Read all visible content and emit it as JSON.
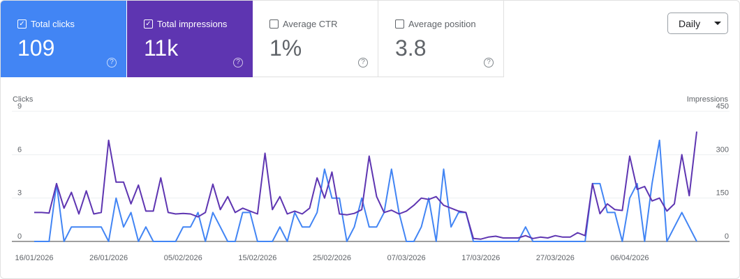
{
  "metrics": [
    {
      "label": "Total clicks",
      "value": "109",
      "checked": true,
      "color": "#4285f4"
    },
    {
      "label": "Total impressions",
      "value": "11k",
      "checked": true,
      "color": "#5e35b1"
    },
    {
      "label": "Average CTR",
      "value": "1%",
      "checked": false
    },
    {
      "label": "Average position",
      "value": "3.8",
      "checked": false
    }
  ],
  "help_glyph": "?",
  "check_glyph": "✓",
  "granularity": {
    "selected": "Daily",
    "icon": "caret-down-icon"
  },
  "chart_data": {
    "type": "line",
    "left_axis_label": "Clicks",
    "right_axis_label": "Impressions",
    "left_ticks": [
      "0",
      "3",
      "6",
      "9"
    ],
    "right_ticks": [
      "0",
      "150",
      "300",
      "450"
    ],
    "ylim_left": [
      0,
      9
    ],
    "ylim_right": [
      0,
      450
    ],
    "x_tick_labels": [
      "16/01/2026",
      "26/01/2026",
      "05/02/2026",
      "15/02/2026",
      "25/02/2026",
      "07/03/2026",
      "17/03/2026",
      "27/03/2026",
      "06/04/2026"
    ],
    "x_start": "16/01/2026",
    "grid": true,
    "series": [
      {
        "key": "clicks",
        "axis": "left",
        "color": "#4285f4",
        "values": [
          0,
          0,
          0,
          4,
          0,
          1,
          1,
          1,
          1,
          1,
          0,
          3,
          1,
          2,
          0,
          1,
          0,
          0,
          0,
          0,
          1,
          1,
          2,
          0,
          2,
          1,
          0,
          0,
          2,
          2,
          0,
          0,
          0,
          1,
          0,
          2,
          1,
          1,
          2,
          5,
          3,
          3,
          0,
          1,
          3,
          1,
          1,
          2,
          5,
          2,
          0,
          0,
          1,
          3,
          0,
          5,
          1,
          2,
          2,
          0,
          0,
          0,
          0,
          0,
          0,
          0,
          1,
          0,
          0,
          0,
          0,
          0,
          0,
          0,
          0,
          4,
          4,
          2,
          2,
          0,
          3,
          4,
          0,
          4,
          7,
          0,
          1,
          2,
          1,
          0
        ]
      },
      {
        "key": "impressions",
        "axis": "right",
        "color": "#5e35b1",
        "values": [
          100,
          100,
          98,
          200,
          115,
          170,
          95,
          175,
          95,
          100,
          350,
          205,
          205,
          130,
          195,
          105,
          105,
          220,
          100,
          95,
          97,
          95,
          85,
          100,
          198,
          110,
          155,
          100,
          115,
          105,
          95,
          305,
          110,
          155,
          95,
          105,
          95,
          115,
          220,
          150,
          240,
          95,
          92,
          97,
          110,
          295,
          155,
          100,
          108,
          95,
          105,
          125,
          150,
          145,
          155,
          125,
          115,
          105,
          100,
          10,
          8,
          15,
          18,
          12,
          12,
          12,
          20,
          10,
          15,
          12,
          20,
          15,
          15,
          30,
          20,
          200,
          96,
          130,
          110,
          107,
          295,
          180,
          190,
          140,
          150,
          105,
          130,
          300,
          158,
          380
        ]
      }
    ]
  }
}
